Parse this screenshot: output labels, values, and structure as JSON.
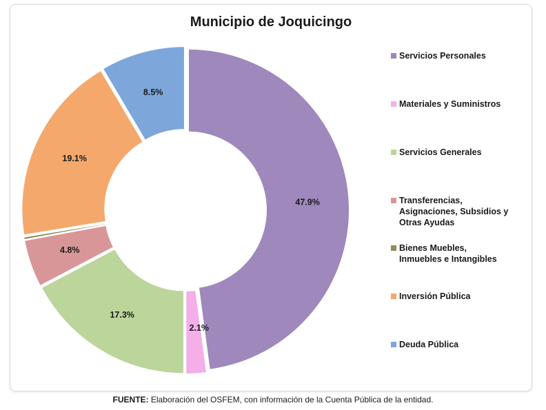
{
  "chart_data": {
    "type": "pie",
    "title": "Municipio de Joquicingo",
    "legend_position": "right",
    "slices": [
      {
        "label": "Servicios Personales",
        "value": 47.9,
        "display": "47.9%",
        "color": "#9e88bc"
      },
      {
        "label": "Materiales y Suministros",
        "value": 2.1,
        "display": "2.1%",
        "color": "#f4aee8"
      },
      {
        "label": "Servicios Generales",
        "value": 17.3,
        "display": "17.3%",
        "color": "#bcd59b"
      },
      {
        "label": "Transferencias, Asignaciones, Subsidios y Otras Ayudas",
        "value": 4.8,
        "display": "4.8%",
        "color": "#d99698"
      },
      {
        "label": "Bienes Muebles, Inmuebles e Intangibles",
        "value": 0.3,
        "display": "0.3%",
        "color": "#948c5a"
      },
      {
        "label": "Inversión Pública",
        "value": 19.1,
        "display": "19.1%",
        "color": "#f4a86c"
      },
      {
        "label": "Deuda Pública",
        "value": 8.5,
        "display": "8.5%",
        "color": "#7da7db"
      }
    ]
  },
  "legend": {
    "items": [
      "Servicios Personales",
      "Materiales y Suministros",
      "Servicios Generales",
      "Transferencias,\nAsignaciones, Subsidios y\nOtras Ayudas",
      "Bienes Muebles,\nInmuebles e Intangibles",
      "Inversión Pública",
      "Deuda Pública"
    ]
  },
  "footer": {
    "label": "FUENTE:",
    "text": " Elaboración del OSFEM, con información de la Cuenta Pública de la entidad."
  }
}
